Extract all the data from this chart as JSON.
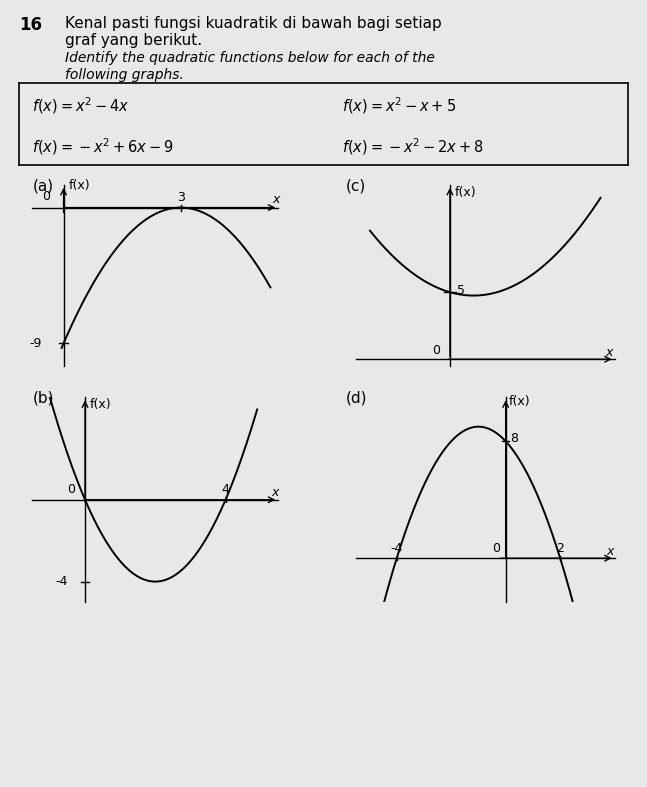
{
  "background_color": "#e8e8e8",
  "curve_color": "#000000",
  "axis_color": "#000000",
  "graph_labels": [
    "(a)",
    "(b)",
    "(c)",
    "(d)"
  ],
  "func_box_left_top": "f(x) = x² – 4x",
  "func_box_left_bot": "f(x) = –x² + 6x – 9",
  "func_box_right_top": "f(x) = x² – x + 5",
  "func_box_right_bot": "f(x) = –x² – 2x + 8"
}
